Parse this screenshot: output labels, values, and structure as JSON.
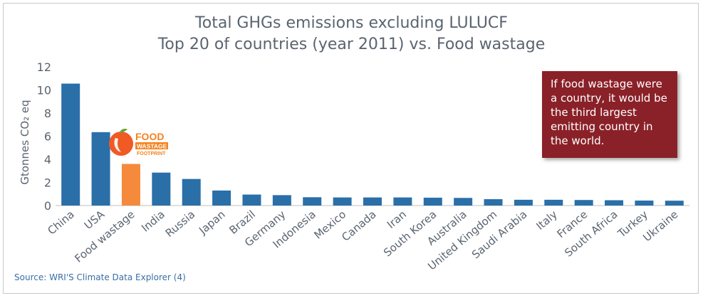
{
  "header": {
    "title_line1": "Total GHGs emissions excluding LULUCF",
    "title_line2": "Top 20 of countries (year 2011) vs. Food wastage"
  },
  "axis": {
    "ylabel": "Gtonnes CO₂ eq"
  },
  "callout": {
    "text": "If food wastage were a country, it would be the third largest emitting country in the world."
  },
  "logo": {
    "line1": "FOOD",
    "line2": "WASTAGE",
    "line3": "FOOTPRINT"
  },
  "footer": {
    "source": "Source: WRI'S Climate Data Explorer (4)"
  },
  "colors": {
    "bar": "#2a6fa8",
    "highlight": "#f58a3c",
    "callout": "#8a2128"
  },
  "chart_data": {
    "type": "bar",
    "title": "Total GHGs emissions excluding LULUCF",
    "subtitle": "Top 20 of countries (year 2011) vs. Food wastage",
    "xlabel": "",
    "ylabel": "Gtonnes CO₂ eq",
    "ylim": [
      0,
      12
    ],
    "yticks": [
      0,
      2,
      4,
      6,
      8,
      10,
      12
    ],
    "grid": false,
    "highlight_category": "Food wastage",
    "categories": [
      "China",
      "USA",
      "Food wastage",
      "India",
      "Russia",
      "Japan",
      "Brazil",
      "Germany",
      "Indonesia",
      "Mexico",
      "Canada",
      "Iran",
      "South Korea",
      "Australia",
      "United Kingdom",
      "Saudi Arabia",
      "Italy",
      "France",
      "South Africa",
      "Turkey",
      "Ukraine"
    ],
    "values": [
      10.55,
      6.35,
      3.6,
      2.85,
      2.3,
      1.3,
      0.95,
      0.9,
      0.72,
      0.7,
      0.7,
      0.7,
      0.68,
      0.66,
      0.55,
      0.5,
      0.5,
      0.48,
      0.46,
      0.43,
      0.42
    ]
  }
}
